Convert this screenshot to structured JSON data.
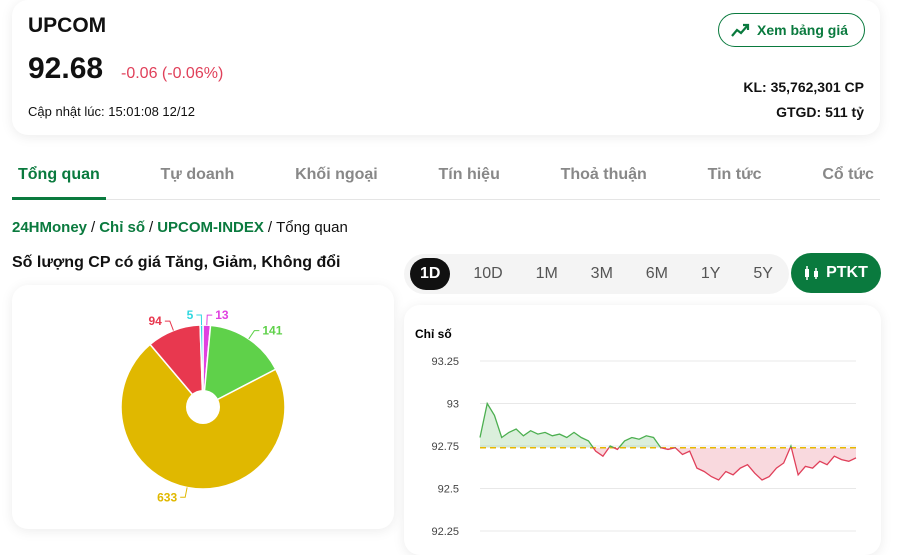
{
  "header": {
    "symbol": "UPCOM",
    "price": "92.68",
    "change": "-0.06 (-0.06%)",
    "updated": "Cập nhật lúc: 15:01:08 12/12",
    "button": "Xem bảng giá",
    "volume": "KL: 35,762,301 CP",
    "value": "GTGD: 511 tỷ"
  },
  "tabs": [
    "Tổng quan",
    "Tự doanh",
    "Khối ngoại",
    "Tín hiệu",
    "Thoả thuận",
    "Tin tức",
    "Cổ tức"
  ],
  "active_tab": 0,
  "breadcrumb": {
    "separator": "/",
    "items": [
      "24HMoney",
      "Chỉ số",
      "UPCOM-INDEX",
      "Tổng quan"
    ]
  },
  "ranges": [
    "1D",
    "10D",
    "1M",
    "3M",
    "6M",
    "1Y",
    "5Y"
  ],
  "active_range": 0,
  "ptkt": "PTKT",
  "chart_data": [
    {
      "type": "pie",
      "title": "Số lượng CP có giá Tăng, Giảm, Không đổi",
      "values": [
        13,
        141,
        633,
        94,
        5
      ],
      "colors": [
        "#e040e0",
        "#5fd14a",
        "#e0b800",
        "#e8384f",
        "#30d8e0"
      ]
    },
    {
      "type": "line",
      "y_label": "Chỉ số",
      "values": [
        92.8,
        93.0,
        92.93,
        92.8,
        92.83,
        92.85,
        92.81,
        92.84,
        92.82,
        92.83,
        92.81,
        92.82,
        92.8,
        92.83,
        92.8,
        92.78,
        92.72,
        92.69,
        92.75,
        92.73,
        92.78,
        92.8,
        92.79,
        92.81,
        92.8,
        92.74,
        92.73,
        92.74,
        92.7,
        92.72,
        92.62,
        92.6,
        92.57,
        92.55,
        92.6,
        92.58,
        92.62,
        92.64,
        92.59,
        92.55,
        92.57,
        92.62,
        92.65,
        92.75,
        92.58,
        92.63,
        92.62,
        92.66,
        92.64,
        92.69,
        92.67,
        92.66,
        92.68
      ],
      "reference_line": 92.74,
      "up_color": "#4caf50",
      "down_color": "#e0405a",
      "reference_color": "#e6b800",
      "ylim": [
        92.25,
        93.25
      ],
      "yticks": [
        92.25,
        92.5,
        92.75,
        93,
        93.25
      ],
      "grid": true
    }
  ]
}
